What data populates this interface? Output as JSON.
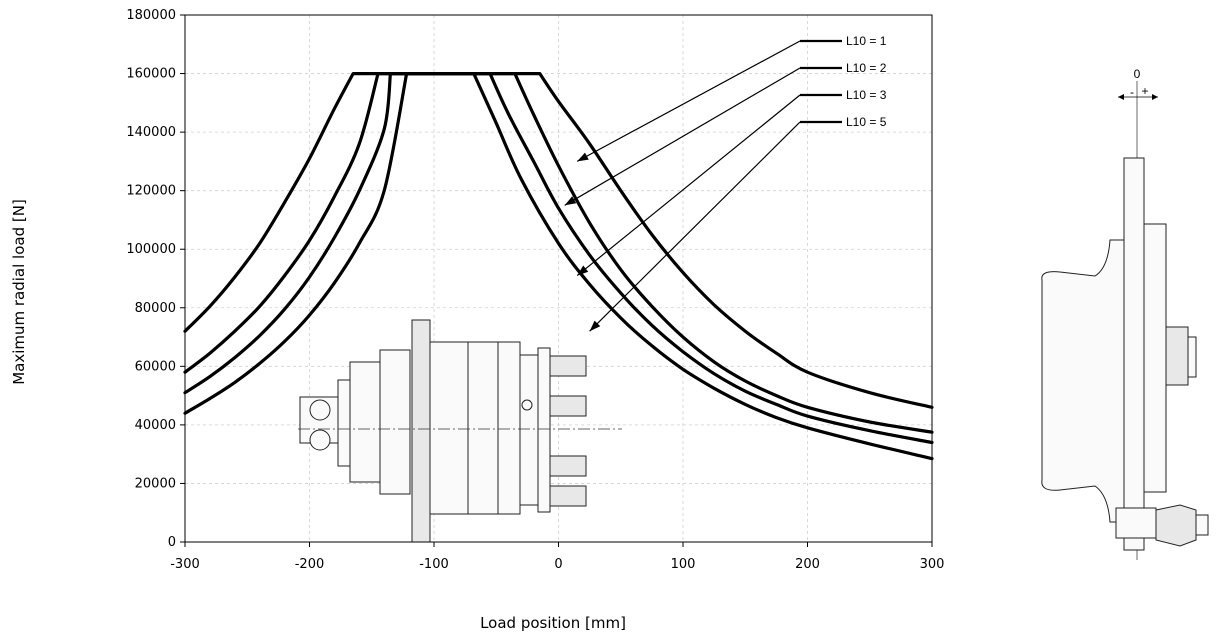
{
  "chart_data": {
    "type": "line",
    "title": "",
    "xlabel": "Load position [mm]",
    "ylabel": "Maximum radial load [N]",
    "xlim": [
      -300,
      300
    ],
    "ylim": [
      0,
      180000
    ],
    "x_ticks": [
      "-300",
      "-200",
      "-100",
      "0",
      "100",
      "200",
      "300"
    ],
    "y_ticks": [
      "0",
      "20000",
      "40000",
      "60000",
      "80000",
      "100000",
      "120000",
      "140000",
      "160000",
      "180000"
    ],
    "grid": true,
    "legend_position": "top-right",
    "series": [
      {
        "name": "L10 = 1",
        "x": [
          -300,
          -280,
          -260,
          -240,
          -220,
          -200,
          -180,
          -165,
          -15,
          0,
          25,
          50,
          75,
          100,
          125,
          150,
          175,
          200,
          250,
          300
        ],
        "y": [
          72000,
          80500,
          90500,
          102000,
          116000,
          131000,
          148000,
          160000,
          160000,
          150500,
          136000,
          120000,
          105000,
          92000,
          81000,
          72000,
          64500,
          58000,
          51000,
          46000
        ]
      },
      {
        "name": "L10 = 2",
        "x": [
          -300,
          -280,
          -260,
          -240,
          -220,
          -200,
          -180,
          -160,
          -145,
          -35,
          -20,
          0,
          25,
          50,
          75,
          100,
          125,
          150,
          175,
          200,
          250,
          300
        ],
        "y": [
          58000,
          64500,
          72000,
          80500,
          91000,
          103000,
          118000,
          136000,
          160000,
          160000,
          146000,
          128500,
          109000,
          93000,
          80500,
          70000,
          61500,
          55000,
          50000,
          46000,
          41000,
          37500
        ]
      },
      {
        "name": "L10 = 3",
        "x": [
          -300,
          -280,
          -260,
          -240,
          -220,
          -200,
          -180,
          -160,
          -140,
          -135,
          -55,
          -40,
          -20,
          0,
          25,
          50,
          75,
          100,
          125,
          150,
          175,
          200,
          250,
          300
        ],
        "y": [
          51000,
          56500,
          63000,
          70500,
          79500,
          90500,
          104000,
          120000,
          141000,
          160000,
          160000,
          146000,
          130000,
          114000,
          98000,
          85000,
          74000,
          65000,
          57500,
          51500,
          47000,
          43000,
          38000,
          34000
        ]
      },
      {
        "name": "L10 = 5",
        "x": [
          -300,
          -280,
          -260,
          -240,
          -220,
          -200,
          -180,
          -160,
          -140,
          -122,
          -68,
          -50,
          -30,
          0,
          25,
          50,
          75,
          100,
          125,
          150,
          175,
          200,
          250,
          300
        ],
        "y": [
          44000,
          49000,
          54500,
          61000,
          68500,
          77500,
          88500,
          102000,
          120000,
          160000,
          160000,
          143000,
          124000,
          102000,
          88000,
          76500,
          67000,
          59000,
          52500,
          47000,
          42500,
          39000,
          33500,
          28500
        ]
      }
    ],
    "annotations": [
      {
        "label": "L10 = 1",
        "target_x": 15,
        "target_y": 130000
      },
      {
        "label": "L10 = 2",
        "target_x": 5,
        "target_y": 115000
      },
      {
        "label": "L10 = 3",
        "target_x": 15,
        "target_y": 91000
      },
      {
        "label": "L10 = 5",
        "target_x": 25,
        "target_y": 72000
      }
    ]
  },
  "side_view": {
    "zero_label": "0",
    "minus_label": "-",
    "plus_label": "+"
  }
}
